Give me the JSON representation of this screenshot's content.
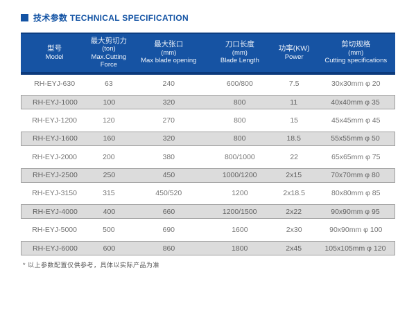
{
  "page": {
    "title_cn": "技术参数",
    "title_en": "TECHNICAL SPECIFICATION",
    "title_full": "技术参数 TECHNICAL SPECIFICATION",
    "footnote": "* 以上参数配置仅供参考，具体以实际产品为准"
  },
  "colors": {
    "accent_blue": "#1353a4",
    "header_blue": "#1653a3",
    "header_dark_blue": "#0c3a7c",
    "alt_row_gray": "#dcdcdc",
    "alt_row_border": "#9e9e9e",
    "body_text_gray": "#757575"
  },
  "table": {
    "columns": [
      {
        "id": "model",
        "lines": [
          "型号",
          "Model"
        ]
      },
      {
        "id": "max-cutting-force",
        "lines": [
          "最大剪切力",
          "(ton)",
          "Max.Cutting",
          "Force"
        ]
      },
      {
        "id": "max-blade-opening",
        "lines": [
          "最大张口",
          "(mm)",
          "Max blade opening"
        ]
      },
      {
        "id": "blade-length",
        "lines": [
          "刀口长度",
          "(mm)",
          "Blade Length"
        ]
      },
      {
        "id": "power",
        "lines": [
          "功率(KW)",
          "Power"
        ]
      },
      {
        "id": "cutting-specifications",
        "lines": [
          "剪切规格",
          "(mm)",
          "Cutting specifications"
        ]
      }
    ],
    "rows": [
      [
        "RH-EYJ-630",
        "63",
        "240",
        "600/800",
        "7.5",
        "30x30mm φ 20"
      ],
      [
        "RH-EYJ-1000",
        "100",
        "320",
        "800",
        "11",
        "40x40mm φ 35"
      ],
      [
        "RH-EYJ-1200",
        "120",
        "270",
        "800",
        "15",
        "45x45mm φ 45"
      ],
      [
        "RH-EYJ-1600",
        "160",
        "320",
        "800",
        "18.5",
        "55x55mm φ 50"
      ],
      [
        "RH-EYJ-2000",
        "200",
        "380",
        "800/1000",
        "22",
        "65x65mm φ 75"
      ],
      [
        "RH-EYJ-2500",
        "250",
        "450",
        "1000/1200",
        "2x15",
        "70x70mm φ 80"
      ],
      [
        "RH-EYJ-3150",
        "315",
        "450/520",
        "1200",
        "2x18.5",
        "80x80mm φ 85"
      ],
      [
        "RH-EYJ-4000",
        "400",
        "660",
        "1200/1500",
        "2x22",
        "90x90mm φ 95"
      ],
      [
        "RH-EYJ-5000",
        "500",
        "690",
        "1600",
        "2x30",
        "90x90mm φ 100"
      ],
      [
        "RH-EYJ-6000",
        "600",
        "860",
        "1800",
        "2x45",
        "105x105mm φ 120"
      ]
    ]
  }
}
